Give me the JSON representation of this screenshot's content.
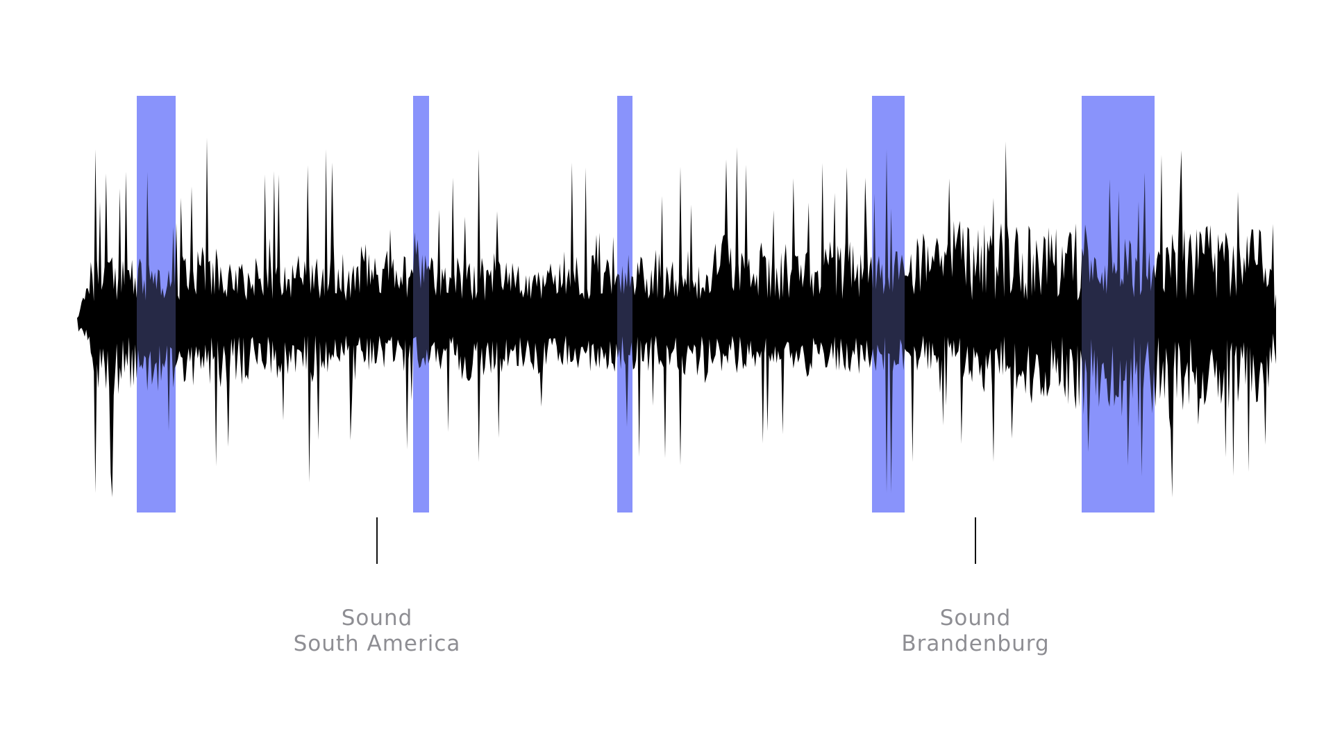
{
  "colors": {
    "background": "#ffffff",
    "waveform": "#000000",
    "highlight": "#8a94fb",
    "label_text": "#8e8e93",
    "marker_line": "#111111"
  },
  "waveform": {
    "seed": 7
  },
  "highlights": [
    {
      "id": "segment-1"
    },
    {
      "id": "segment-2"
    },
    {
      "id": "segment-3"
    },
    {
      "id": "segment-4"
    },
    {
      "id": "segment-5"
    }
  ],
  "markers": [
    {
      "id": "south-america",
      "line1": "Sound",
      "line2": "South America"
    },
    {
      "id": "brandenburg",
      "line1": "Sound",
      "line2": "Brandenburg"
    }
  ]
}
